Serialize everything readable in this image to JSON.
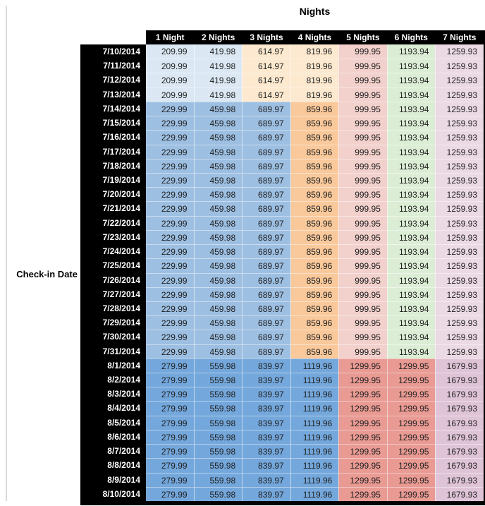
{
  "palette": {
    "light_blue": "#DBE8F4",
    "medium_blue": "#9DBFE2",
    "strong_blue": "#74A7DB",
    "light_orange": "#FCE9CF",
    "orange": "#F9C99B",
    "light_red": "#F2D0CC",
    "salmon": "#E89A93",
    "light_green": "#DCEDD5",
    "light_mauve": "#EBD9E4",
    "mauve": "#DFC4D7",
    "header_bg": "#000000",
    "header_text": "#FFFFFF",
    "value_text": "#1F1F1F",
    "left_rule_gray": "#DCDCDC"
  },
  "chart_data": {
    "type": "table",
    "title": "Nights",
    "row_axis_label": "Check-in Date",
    "columns": [
      "1 Night",
      "2 Nights",
      "3 Nights",
      "4 Nights",
      "5 Nights",
      "6 Nights",
      "7 Nights"
    ],
    "bands": [
      {
        "column_colors": [
          "light_blue",
          "light_blue",
          "light_orange",
          "light_orange",
          "light_red",
          "light_green",
          "light_mauve"
        ],
        "rows": [
          {
            "date": "7/10/2014",
            "values": [
              209.99,
              419.98,
              614.97,
              819.96,
              999.95,
              1193.94,
              1259.93
            ]
          },
          {
            "date": "7/11/2014",
            "values": [
              209.99,
              419.98,
              614.97,
              819.96,
              999.95,
              1193.94,
              1259.93
            ]
          },
          {
            "date": "7/12/2014",
            "values": [
              209.99,
              419.98,
              614.97,
              819.96,
              999.95,
              1193.94,
              1259.93
            ]
          },
          {
            "date": "7/13/2014",
            "values": [
              209.99,
              419.98,
              614.97,
              819.96,
              999.95,
              1193.94,
              1259.93
            ]
          }
        ]
      },
      {
        "column_colors": [
          "medium_blue",
          "medium_blue",
          "medium_blue",
          "orange",
          "light_red",
          "light_green",
          "light_mauve"
        ],
        "rows": [
          {
            "date": "7/14/2014",
            "values": [
              229.99,
              459.98,
              689.97,
              859.96,
              999.95,
              1193.94,
              1259.93
            ]
          },
          {
            "date": "7/15/2014",
            "values": [
              229.99,
              459.98,
              689.97,
              859.96,
              999.95,
              1193.94,
              1259.93
            ]
          },
          {
            "date": "7/16/2014",
            "values": [
              229.99,
              459.98,
              689.97,
              859.96,
              999.95,
              1193.94,
              1259.93
            ]
          },
          {
            "date": "7/17/2014",
            "values": [
              229.99,
              459.98,
              689.97,
              859.96,
              999.95,
              1193.94,
              1259.93
            ]
          },
          {
            "date": "7/18/2014",
            "values": [
              229.99,
              459.98,
              689.97,
              859.96,
              999.95,
              1193.94,
              1259.93
            ]
          },
          {
            "date": "7/19/2014",
            "values": [
              229.99,
              459.98,
              689.97,
              859.96,
              999.95,
              1193.94,
              1259.93
            ]
          },
          {
            "date": "7/20/2014",
            "values": [
              229.99,
              459.98,
              689.97,
              859.96,
              999.95,
              1193.94,
              1259.93
            ]
          },
          {
            "date": "7/21/2014",
            "values": [
              229.99,
              459.98,
              689.97,
              859.96,
              999.95,
              1193.94,
              1259.93
            ]
          },
          {
            "date": "7/22/2014",
            "values": [
              229.99,
              459.98,
              689.97,
              859.96,
              999.95,
              1193.94,
              1259.93
            ]
          },
          {
            "date": "7/23/2014",
            "values": [
              229.99,
              459.98,
              689.97,
              859.96,
              999.95,
              1193.94,
              1259.93
            ]
          },
          {
            "date": "7/24/2014",
            "values": [
              229.99,
              459.98,
              689.97,
              859.96,
              999.95,
              1193.94,
              1259.93
            ]
          },
          {
            "date": "7/25/2014",
            "values": [
              229.99,
              459.98,
              689.97,
              859.96,
              999.95,
              1193.94,
              1259.93
            ]
          },
          {
            "date": "7/26/2014",
            "values": [
              229.99,
              459.98,
              689.97,
              859.96,
              999.95,
              1193.94,
              1259.93
            ]
          },
          {
            "date": "7/27/2014",
            "values": [
              229.99,
              459.98,
              689.97,
              859.96,
              999.95,
              1193.94,
              1259.93
            ]
          },
          {
            "date": "7/28/2014",
            "values": [
              229.99,
              459.98,
              689.97,
              859.96,
              999.95,
              1193.94,
              1259.93
            ]
          },
          {
            "date": "7/29/2014",
            "values": [
              229.99,
              459.98,
              689.97,
              859.96,
              999.95,
              1193.94,
              1259.93
            ]
          },
          {
            "date": "7/30/2014",
            "values": [
              229.99,
              459.98,
              689.97,
              859.96,
              999.95,
              1193.94,
              1259.93
            ]
          },
          {
            "date": "7/31/2014",
            "values": [
              229.99,
              459.98,
              689.97,
              859.96,
              999.95,
              1193.94,
              1259.93
            ]
          }
        ]
      },
      {
        "column_colors": [
          "strong_blue",
          "strong_blue",
          "strong_blue",
          "strong_blue",
          "salmon",
          "salmon",
          "mauve"
        ],
        "rows": [
          {
            "date": "8/1/2014",
            "values": [
              279.99,
              559.98,
              839.97,
              1119.96,
              1299.95,
              1299.95,
              1679.93
            ]
          },
          {
            "date": "8/2/2014",
            "values": [
              279.99,
              559.98,
              839.97,
              1119.96,
              1299.95,
              1299.95,
              1679.93
            ]
          },
          {
            "date": "8/3/2014",
            "values": [
              279.99,
              559.98,
              839.97,
              1119.96,
              1299.95,
              1299.95,
              1679.93
            ]
          },
          {
            "date": "8/4/2014",
            "values": [
              279.99,
              559.98,
              839.97,
              1119.96,
              1299.95,
              1299.95,
              1679.93
            ]
          },
          {
            "date": "8/5/2014",
            "values": [
              279.99,
              559.98,
              839.97,
              1119.96,
              1299.95,
              1299.95,
              1679.93
            ]
          },
          {
            "date": "8/6/2014",
            "values": [
              279.99,
              559.98,
              839.97,
              1119.96,
              1299.95,
              1299.95,
              1679.93
            ]
          },
          {
            "date": "8/7/2014",
            "values": [
              279.99,
              559.98,
              839.97,
              1119.96,
              1299.95,
              1299.95,
              1679.93
            ]
          },
          {
            "date": "8/8/2014",
            "values": [
              279.99,
              559.98,
              839.97,
              1119.96,
              1299.95,
              1299.95,
              1679.93
            ]
          },
          {
            "date": "8/9/2014",
            "values": [
              279.99,
              559.98,
              839.97,
              1119.96,
              1299.95,
              1299.95,
              1679.93
            ]
          },
          {
            "date": "8/10/2014",
            "values": [
              279.99,
              559.98,
              839.97,
              1119.96,
              1299.95,
              1299.95,
              1679.93
            ]
          }
        ]
      }
    ]
  }
}
